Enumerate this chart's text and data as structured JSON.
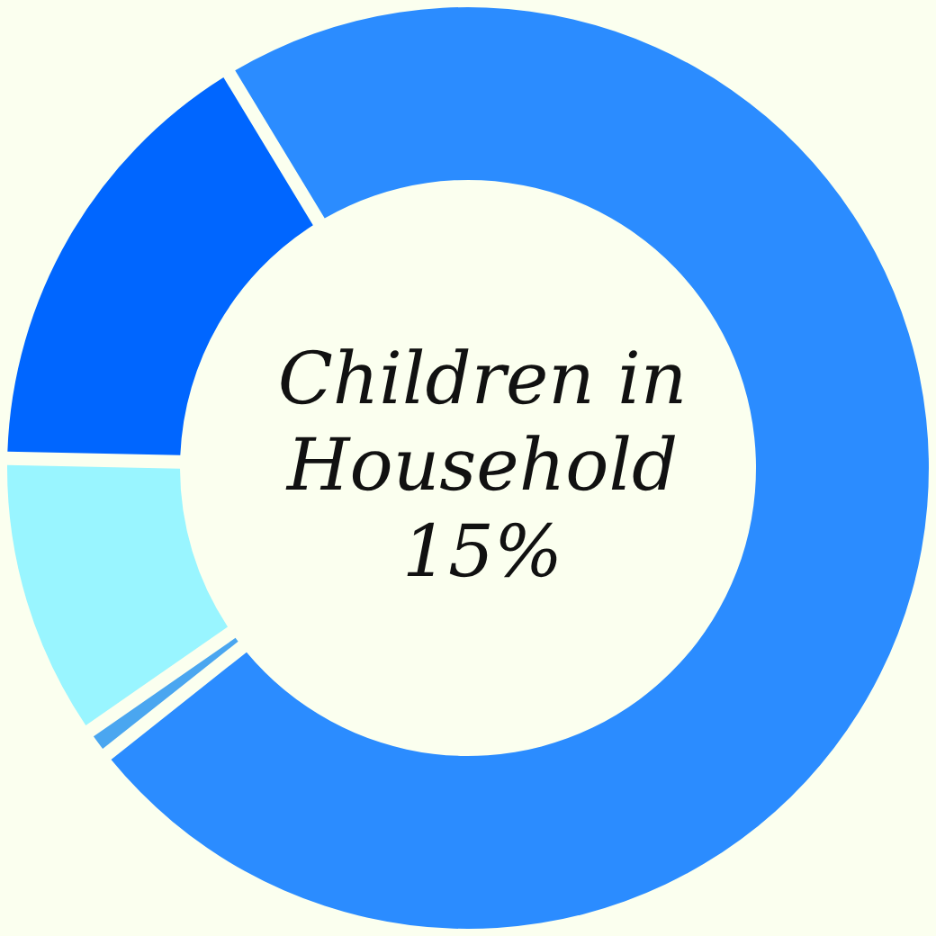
{
  "chart_data": {
    "type": "donut",
    "title": "Children in Household",
    "annotations": [
      "15%"
    ],
    "categories": [
      null,
      null,
      null,
      null
    ],
    "values": [
      73,
      1,
      10,
      16
    ],
    "colors": [
      "#2b8cff",
      "#4aa6f0",
      "#99f5ff",
      "#0066ff"
    ],
    "legend": false
  }
}
